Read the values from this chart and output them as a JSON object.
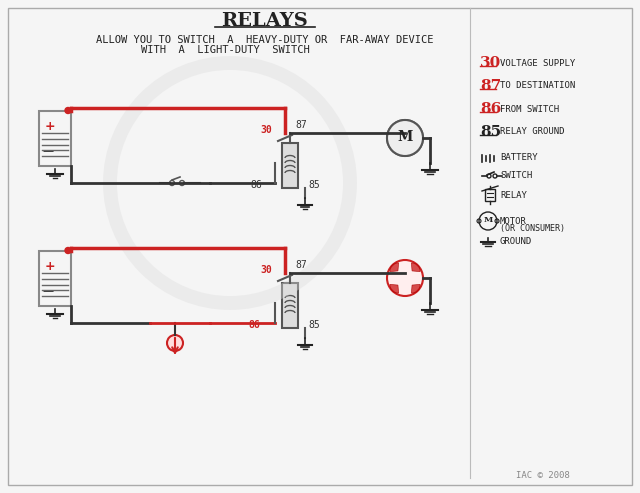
{
  "title": "RELAYS",
  "subtitle1": "ALLOW YOU TO SWITCH  A  HEAVY-DUTY OR  FAR-AWAY DEVICE",
  "subtitle2": "WITH  A  LIGHT-DUTY  SWITCH",
  "bg_color": "#f5f5f5",
  "border_color": "#888888",
  "red": "#cc2222",
  "dark": "#222222",
  "gray": "#888888",
  "legend_items": [
    {
      "num": "30",
      "text": "VOLTAGE SUPPLY",
      "color": "#cc2222"
    },
    {
      "num": "87",
      "text": "TO DESTINATION",
      "color": "#cc2222"
    },
    {
      "num": "86",
      "text": "FROM SWITCH",
      "color": "#cc2222"
    },
    {
      "num": "85",
      "text": "RELAY GROUND",
      "color": "#333333"
    }
  ],
  "legend_symbols": [
    "BATTERY",
    "SWITCH",
    "RELAY",
    "MOTOR\n(OR CONSUMER)",
    "GROUND"
  ],
  "footer": "IAC © 2008"
}
